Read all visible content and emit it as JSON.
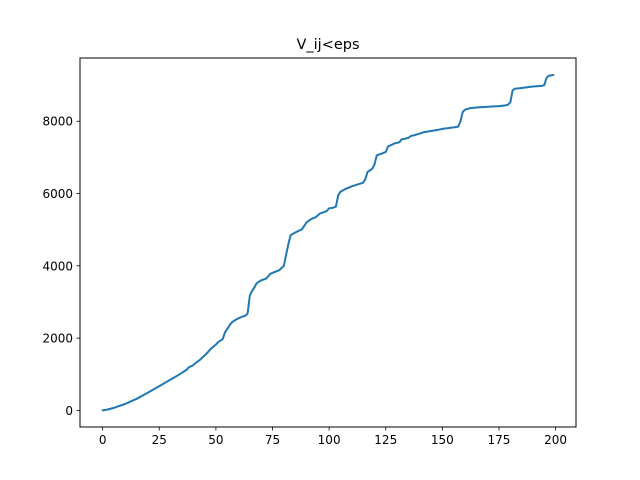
{
  "chart_data": {
    "type": "line",
    "title": "V_ij<eps",
    "xlabel": "",
    "ylabel": "",
    "xlim": [
      -10,
      209
    ],
    "ylim": [
      -460,
      9750
    ],
    "grid": false,
    "legend": "none",
    "line_color": "#1f77b4",
    "x_ticks": [
      0,
      25,
      50,
      75,
      100,
      125,
      150,
      175,
      200
    ],
    "x_tick_labels": [
      "0",
      "25",
      "50",
      "75",
      "100",
      "125",
      "150",
      "175",
      "200"
    ],
    "y_ticks": [
      0,
      2000,
      4000,
      6000,
      8000
    ],
    "y_tick_labels": [
      "0",
      "2000",
      "4000",
      "6000",
      "8000"
    ],
    "series": [
      {
        "x": [
          0,
          2,
          5,
          10,
          15,
          20,
          25,
          28,
          31,
          33,
          35,
          37,
          38,
          40,
          41,
          43,
          45,
          46,
          47,
          48,
          50,
          51,
          53,
          54,
          55,
          56,
          57,
          58,
          60,
          62,
          63,
          64,
          65,
          66,
          67,
          68,
          70,
          72,
          73,
          74,
          76,
          78,
          79,
          80,
          81,
          82,
          83,
          85,
          87,
          88,
          90,
          92,
          93,
          94,
          96,
          98,
          99,
          100,
          101,
          102,
          103,
          104,
          105,
          107,
          110,
          115,
          116,
          117,
          118,
          119,
          120,
          121,
          122,
          123,
          125,
          126,
          128,
          129,
          130,
          131,
          132,
          133,
          135,
          136,
          138,
          140,
          142,
          145,
          148,
          150,
          155,
          157,
          158,
          159,
          160,
          161,
          162,
          165,
          170,
          175,
          178,
          179,
          180,
          181,
          182,
          185,
          190,
          194,
          195,
          196,
          197,
          199
        ],
        "y": [
          0,
          20,
          70,
          180,
          320,
          490,
          670,
          780,
          890,
          960,
          1040,
          1120,
          1190,
          1250,
          1310,
          1400,
          1520,
          1580,
          1650,
          1720,
          1820,
          1890,
          1970,
          2160,
          2250,
          2350,
          2430,
          2480,
          2550,
          2600,
          2620,
          2680,
          3180,
          3310,
          3400,
          3520,
          3600,
          3640,
          3700,
          3780,
          3830,
          3880,
          3940,
          4000,
          4300,
          4600,
          4850,
          4920,
          4980,
          5010,
          5200,
          5290,
          5320,
          5340,
          5450,
          5490,
          5520,
          5590,
          5600,
          5610,
          5640,
          5950,
          6050,
          6120,
          6200,
          6300,
          6400,
          6600,
          6640,
          6680,
          6800,
          7050,
          7080,
          7100,
          7150,
          7300,
          7360,
          7390,
          7400,
          7420,
          7500,
          7510,
          7540,
          7590,
          7620,
          7660,
          7700,
          7730,
          7760,
          7790,
          7830,
          7850,
          8000,
          8260,
          8320,
          8340,
          8360,
          8380,
          8400,
          8420,
          8440,
          8460,
          8520,
          8850,
          8900,
          8920,
          8960,
          8980,
          9000,
          9200,
          9260,
          9280
        ]
      }
    ]
  }
}
